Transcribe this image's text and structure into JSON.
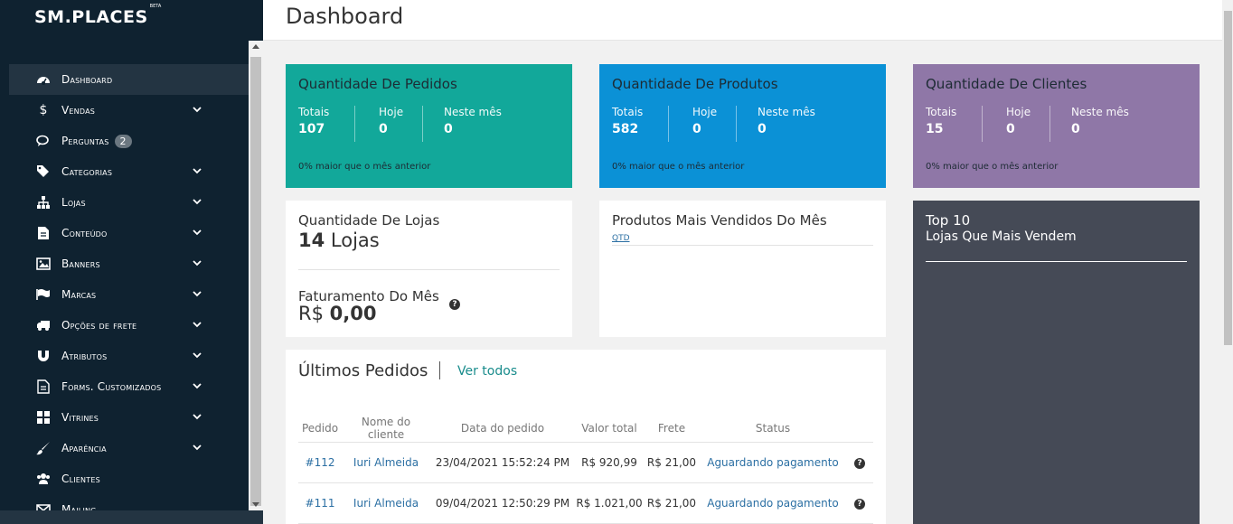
{
  "app": {
    "logo": "SM.PLACES",
    "logo_badge": "BETA"
  },
  "sidebar": {
    "items": [
      {
        "label": "Dashboard",
        "icon": "dashboard-icon",
        "active": true
      },
      {
        "label": "Vendas",
        "icon": "dollar-icon",
        "has_children": true
      },
      {
        "label": "Perguntas",
        "icon": "comments-icon",
        "badge": "2"
      },
      {
        "label": "Categorias",
        "icon": "tags-icon",
        "has_children": true
      },
      {
        "label": "Lojas",
        "icon": "sitemap-icon",
        "has_children": true
      },
      {
        "label": "Conteúdo",
        "icon": "file-icon",
        "has_children": true
      },
      {
        "label": "Banners",
        "icon": "image-icon",
        "has_children": true
      },
      {
        "label": "Marcas",
        "icon": "flag-icon",
        "has_children": true
      },
      {
        "label": "Opções de frete",
        "icon": "truck-icon",
        "has_children": true
      },
      {
        "label": "Atributos",
        "icon": "magnet-icon",
        "has_children": true
      },
      {
        "label": "Forms. Customizados",
        "icon": "form-icon",
        "has_children": true
      },
      {
        "label": "Vitrines",
        "icon": "windows-icon",
        "has_children": true
      },
      {
        "label": "Aparência",
        "icon": "brush-icon",
        "has_children": true
      },
      {
        "label": "Clientes",
        "icon": "users-icon"
      },
      {
        "label": "Mailing",
        "icon": "envelope-icon"
      }
    ]
  },
  "header": {
    "title": "Dashboard"
  },
  "stats": [
    {
      "title": "Quantidade De Pedidos",
      "color": "#12a89a",
      "totais_label": "Totais",
      "totais": "107",
      "hoje_label": "Hoje",
      "hoje": "0",
      "mes_label": "Neste mês",
      "mes": "0",
      "note": "0% maior que o mês anterior"
    },
    {
      "title": "Quantidade De Produtos",
      "color": "#0b91d6",
      "totais_label": "Totais",
      "totais": "582",
      "hoje_label": "Hoje",
      "hoje": "0",
      "mes_label": "Neste mês",
      "mes": "0",
      "note": "0% maior que o mês anterior"
    },
    {
      "title": "Quantidade De Clientes",
      "color": "#8f77a7",
      "totais_label": "Totais",
      "totais": "15",
      "hoje_label": "Hoje",
      "hoje": "0",
      "mes_label": "Neste mês",
      "mes": "0",
      "note": "0% maior que o mês anterior"
    }
  ],
  "lojas": {
    "title": "Quantidade De Lojas",
    "count": "14",
    "unit": "Lojas"
  },
  "faturamento": {
    "title": "Faturamento Do Mês",
    "currency": "R$",
    "value": "0,00"
  },
  "produtos_vendidos": {
    "title": "Produtos Mais Vendidos Do Mês",
    "column": "QTD"
  },
  "top10": {
    "title": "Top 10",
    "subtitle": "Lojas Que Mais Vendem",
    "bg": "#454a56"
  },
  "orders": {
    "title": "Últimos Pedidos",
    "link": "Ver todos",
    "columns": [
      "Pedido",
      "Nome do cliente",
      "Data do pedido",
      "Valor total",
      "Frete",
      "Status"
    ],
    "rows": [
      {
        "id": "#112",
        "client": "Iuri Almeida",
        "date": "23/04/2021 15:52:24 PM",
        "total": "R$ 920,99",
        "frete": "R$ 21,00",
        "status": "Aguardando pagamento"
      },
      {
        "id": "#111",
        "client": "Iuri Almeida",
        "date": "09/04/2021 12:50:29 PM",
        "total": "R$ 1.021,00",
        "frete": "R$ 21,00",
        "status": "Aguardando pagamento"
      }
    ]
  }
}
